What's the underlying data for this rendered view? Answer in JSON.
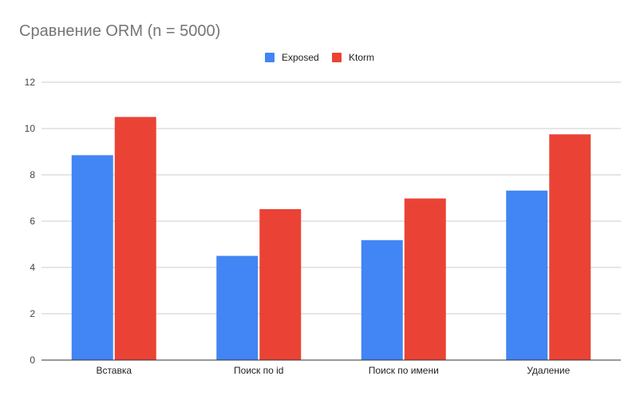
{
  "chart_data": {
    "type": "bar",
    "title": "Сравнение ORM (n = 5000)",
    "categories": [
      "Вставка",
      "Поиск по id",
      "Поиск по имени",
      "Удаление"
    ],
    "series": [
      {
        "name": "Exposed",
        "color": "#4285f4",
        "values": [
          8.85,
          4.5,
          5.18,
          7.32
        ]
      },
      {
        "name": "Ktorm",
        "color": "#ea4335",
        "values": [
          10.5,
          6.52,
          6.98,
          9.75
        ]
      }
    ],
    "yticks": [
      "0",
      "2",
      "4",
      "6",
      "8",
      "10",
      "12"
    ],
    "ylim": [
      0,
      12
    ],
    "grid": true,
    "legend_position": "top-center"
  }
}
